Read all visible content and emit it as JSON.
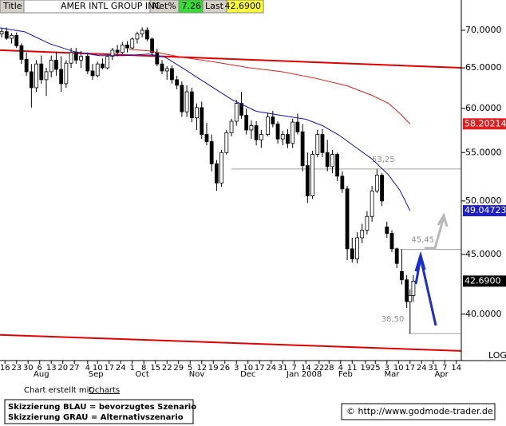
{
  "chart_data": {
    "type": "candlestick",
    "header": {
      "title_label": "Title",
      "name": "AMER INTL GROUP INC",
      "net_label": "Net%",
      "net": 7.26,
      "last_label": "Last",
      "last": "42.6900"
    },
    "log_scale": true,
    "ylim": [
      36.5,
      74.3
    ],
    "yticks": [
      {
        "value": 40,
        "label": "40.0000"
      },
      {
        "value": 45,
        "label": "45.0000"
      },
      {
        "value": 50,
        "label": "50.0000"
      },
      {
        "value": 55,
        "label": "55.0000"
      },
      {
        "value": 60,
        "label": "60.0000"
      },
      {
        "value": 65,
        "label": "65.0000"
      },
      {
        "value": 70,
        "label": "70.0000"
      }
    ],
    "xlim": [
      0,
      279
    ],
    "xticks": [
      {
        "value": 3,
        "label": "16"
      },
      {
        "value": 10,
        "label": "23"
      },
      {
        "value": 17,
        "label": "30"
      },
      {
        "value": 24,
        "label": "6"
      },
      {
        "value": 31,
        "label": "13"
      },
      {
        "value": 38,
        "label": "20"
      },
      {
        "value": 45,
        "label": "27"
      },
      {
        "value": 53,
        "label": "4"
      },
      {
        "value": 59,
        "label": "10"
      },
      {
        "value": 66,
        "label": "17"
      },
      {
        "value": 73,
        "label": "24"
      },
      {
        "value": 80,
        "label": "1"
      },
      {
        "value": 87,
        "label": "8"
      },
      {
        "value": 94,
        "label": "15"
      },
      {
        "value": 101,
        "label": "22"
      },
      {
        "value": 108,
        "label": "29"
      },
      {
        "value": 115,
        "label": "5"
      },
      {
        "value": 122,
        "label": "12"
      },
      {
        "value": 129,
        "label": "19"
      },
      {
        "value": 136,
        "label": "26"
      },
      {
        "value": 143,
        "label": "3"
      },
      {
        "value": 150,
        "label": "10"
      },
      {
        "value": 157,
        "label": "17"
      },
      {
        "value": 164,
        "label": "24"
      },
      {
        "value": 171,
        "label": "31"
      },
      {
        "value": 178,
        "label": "7"
      },
      {
        "value": 185,
        "label": "14"
      },
      {
        "value": 193,
        "label": "22"
      },
      {
        "value": 199,
        "label": "28"
      },
      {
        "value": 206,
        "label": "4"
      },
      {
        "value": 213,
        "label": "11"
      },
      {
        "value": 221,
        "label": "19"
      },
      {
        "value": 227,
        "label": "25"
      },
      {
        "value": 234,
        "label": "3"
      },
      {
        "value": 241,
        "label": "10"
      },
      {
        "value": 248,
        "label": "17"
      },
      {
        "value": 255,
        "label": "24"
      },
      {
        "value": 262,
        "label": "31"
      },
      {
        "value": 269,
        "label": "7"
      },
      {
        "value": 276,
        "label": "14"
      }
    ],
    "month_ticks": [
      {
        "value": 25,
        "label": "Aug"
      },
      {
        "value": 58,
        "label": "Sep"
      },
      {
        "value": 86,
        "label": "Oct"
      },
      {
        "value": 119,
        "label": "Nov"
      },
      {
        "value": 150,
        "label": "Dec"
      },
      {
        "value": 184,
        "label": "Jan 2008"
      },
      {
        "value": 209,
        "label": "Feb"
      },
      {
        "value": 237,
        "label": "Mar"
      },
      {
        "value": 267,
        "label": "Apr"
      }
    ],
    "candles": {
      "up_color": "#ffffff",
      "down_color": "#000000",
      "x": [
        1,
        4,
        7,
        10,
        13,
        16,
        19,
        22,
        25,
        28,
        31,
        34,
        37,
        40,
        43,
        46,
        49,
        53,
        56,
        59,
        62,
        65,
        68,
        71,
        74,
        77,
        80,
        83,
        86,
        89,
        92,
        95,
        98,
        101,
        104,
        107,
        110,
        113,
        116,
        119,
        122,
        125,
        128,
        131,
        134,
        137,
        140,
        143,
        146,
        149,
        152,
        155,
        158,
        162,
        165,
        168,
        171,
        174,
        177,
        180,
        183,
        186,
        189,
        192,
        195,
        198,
        201,
        204,
        207,
        210,
        213,
        216,
        219,
        222,
        225,
        228,
        231,
        234,
        237,
        240,
        243,
        246,
        248,
        250
      ],
      "open": [
        69.5,
        69.8,
        68.9,
        69.3,
        67.9,
        66.1,
        64.5,
        62.5,
        65.5,
        63.5,
        64.5,
        66.0,
        64.8,
        63.0,
        65.6,
        67.0,
        66.0,
        66.5,
        64.6,
        64.0,
        65.5,
        65.0,
        66.5,
        67.3,
        67.0,
        68.0,
        67.6,
        68.8,
        69.5,
        70.0,
        68.8,
        67.0,
        65.5,
        64.6,
        64.9,
        63.5,
        62.8,
        59.6,
        62.0,
        58.9,
        60.1,
        57.0,
        56.2,
        53.8,
        51.8,
        55.0,
        57.2,
        58.5,
        60.6,
        59.2,
        57.5,
        58.0,
        56.4,
        57.0,
        59.0,
        58.2,
        56.5,
        57.0,
        56.0,
        58.4,
        57.3,
        53.6,
        50.5,
        54.8,
        57.0,
        55.0,
        53.5,
        54.8,
        52.5,
        51.2,
        45.5,
        44.6,
        46.5,
        47.2,
        48.5,
        51.0,
        52.6,
        47.5,
        46.9,
        45.5,
        43.5,
        42.8,
        41.0,
        41.5
      ],
      "high": [
        70.3,
        70.4,
        69.6,
        69.7,
        68.2,
        67.0,
        65.5,
        66.0,
        66.6,
        65.0,
        66.6,
        67.1,
        66.5,
        66.0,
        67.6,
        67.6,
        67.2,
        67.0,
        65.5,
        65.8,
        66.2,
        66.8,
        67.6,
        68.0,
        68.4,
        68.5,
        69.0,
        69.8,
        70.4,
        70.4,
        69.0,
        67.5,
        66.0,
        65.2,
        65.3,
        64.0,
        63.3,
        62.8,
        62.5,
        60.6,
        60.8,
        58.3,
        57.0,
        54.2,
        55.3,
        57.5,
        58.8,
        61.0,
        62.0,
        60.0,
        58.6,
        58.5,
        57.5,
        59.5,
        59.7,
        58.5,
        57.4,
        57.6,
        58.8,
        59.4,
        58.2,
        55.0,
        55.2,
        57.5,
        57.6,
        56.4,
        55.3,
        55.0,
        53.0,
        51.5,
        46.5,
        47.0,
        47.8,
        49.0,
        51.5,
        53.25,
        52.8,
        48.0,
        47.2,
        45.6,
        45.45,
        43.2,
        42.0,
        43.2
      ],
      "low": [
        69.0,
        68.7,
        68.2,
        67.6,
        65.5,
        64.0,
        60.1,
        62.0,
        63.0,
        61.5,
        63.8,
        64.0,
        62.0,
        62.5,
        65.0,
        65.5,
        65.0,
        64.2,
        63.5,
        63.8,
        64.8,
        64.8,
        66.0,
        66.5,
        66.8,
        67.0,
        67.4,
        68.2,
        69.0,
        68.5,
        66.5,
        65.2,
        64.2,
        63.5,
        63.0,
        62.3,
        59.0,
        59.0,
        58.4,
        57.5,
        56.5,
        55.8,
        53.0,
        51.0,
        51.4,
        54.8,
        56.8,
        58.0,
        58.8,
        57.0,
        56.5,
        55.8,
        55.5,
        56.8,
        57.8,
        56.0,
        55.8,
        55.5,
        55.5,
        57.0,
        53.0,
        49.8,
        50.2,
        54.5,
        54.5,
        53.0,
        52.8,
        52.0,
        50.8,
        44.5,
        44.3,
        44.2,
        46.0,
        46.8,
        48.0,
        50.8,
        49.5,
        46.5,
        45.2,
        43.8,
        42.4,
        40.5,
        38.5,
        41.0
      ],
      "close": [
        69.8,
        68.9,
        69.3,
        67.9,
        66.1,
        64.5,
        62.5,
        65.5,
        63.5,
        64.5,
        66.0,
        64.8,
        63.0,
        65.6,
        67.0,
        66.0,
        66.5,
        64.6,
        64.0,
        65.5,
        65.0,
        66.5,
        67.3,
        67.0,
        68.0,
        67.6,
        68.8,
        69.5,
        70.0,
        68.8,
        67.0,
        65.5,
        64.6,
        64.9,
        63.5,
        62.8,
        59.6,
        62.0,
        58.9,
        60.1,
        57.0,
        56.2,
        53.8,
        51.8,
        55.0,
        57.2,
        58.5,
        60.6,
        59.2,
        57.5,
        58.0,
        56.4,
        57.0,
        59.0,
        58.2,
        56.5,
        57.0,
        56.0,
        58.4,
        57.3,
        53.6,
        50.5,
        54.8,
        57.0,
        55.0,
        53.5,
        54.8,
        52.5,
        51.2,
        45.5,
        44.6,
        46.5,
        47.2,
        48.5,
        51.0,
        52.6,
        50.0,
        46.9,
        45.5,
        44.2,
        42.8,
        41.0,
        41.5,
        42.69
      ]
    },
    "series": [
      {
        "color": "#1010c0",
        "box_color": "#2020c8",
        "x": [
          0,
          15,
          30,
          45,
          60,
          75,
          90,
          100,
          110,
          125,
          140,
          155,
          170,
          185,
          195,
          205,
          215,
          225,
          235,
          242,
          248
        ],
        "values": [
          70.33,
          69.78,
          68.16,
          67.1,
          66.58,
          66.58,
          66.79,
          66.37,
          65.03,
          63.02,
          61.08,
          59.66,
          59.19,
          58.73,
          58.0,
          56.92,
          55.6,
          54.31,
          52.64,
          51.02,
          49.04723
        ]
      },
      {
        "color": "#e02020",
        "box_color": "#e02020",
        "x": [
          78,
          90,
          110,
          130,
          150,
          170,
          190,
          210,
          225,
          235,
          242,
          248
        ],
        "values": [
          67.42,
          67.21,
          66.37,
          65.75,
          65.03,
          64.52,
          63.72,
          62.73,
          61.56,
          60.6,
          59.38,
          58.20214
        ]
      }
    ],
    "trendlines": [
      {
        "color": "#e00000",
        "x": [
          0,
          279
        ],
        "values": [
          67.3,
          65.0
        ]
      },
      {
        "color": "#e00000",
        "x": [
          0,
          279
        ],
        "values": [
          38.4,
          37.2
        ]
      }
    ],
    "levels": [
      {
        "value": 53.25,
        "label": "53,25",
        "x": [
          140,
          279
        ]
      },
      {
        "value": 45.45,
        "label": "45,45",
        "x": [
          242,
          279
        ]
      },
      {
        "value": 38.5,
        "label": "38,50",
        "x": [
          247,
          279
        ]
      }
    ],
    "scale_label": "LOG",
    "footer": {
      "credit_prefix": "Chart erstellt mit",
      "credit_link": "Qcharts",
      "legend": [
        "Skizzierung BLAU = bevorzugtes Szenario",
        "Skizzierung GRAU = Alternativszenario"
      ],
      "copyright": "© http://www.godmode-trader.de"
    }
  }
}
